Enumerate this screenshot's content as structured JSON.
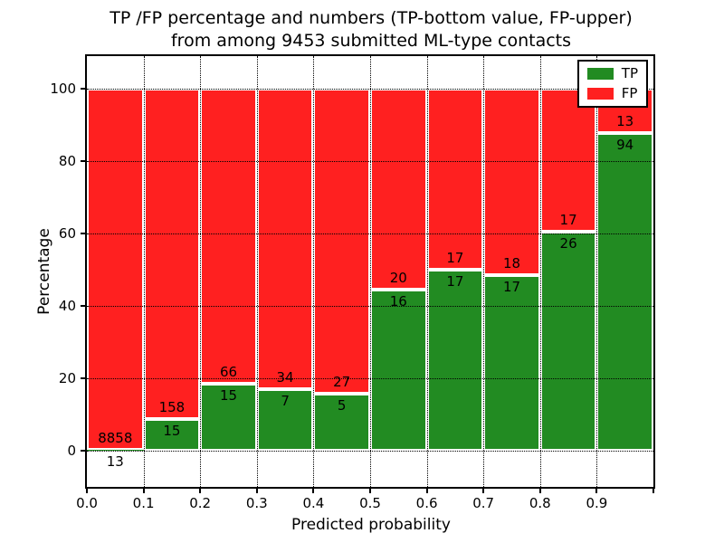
{
  "header": {
    "title_line1": "TP /FP percentage and numbers (TP-bottom value, FP-upper)",
    "title_line2": "from among 9453 submitted ML-type contacts"
  },
  "axes": {
    "xlabel": "Predicted probability",
    "ylabel": "Percentage",
    "xtick_labels": [
      "0.0",
      "0.1",
      "0.2",
      "0.3",
      "0.4",
      "0.5",
      "0.6",
      "0.7",
      "0.8",
      "0.9"
    ],
    "ytick_values": [
      0,
      20,
      40,
      60,
      80,
      100
    ]
  },
  "legend": {
    "position": "upper right",
    "entries": [
      {
        "label": "TP",
        "color": "#228b22"
      },
      {
        "label": "FP",
        "color": "#ff2020"
      }
    ]
  },
  "chart_data": {
    "type": "bar",
    "stacked": true,
    "normalized": "each bin stacks to 100 percent",
    "title": "TP /FP percentage and numbers (TP-bottom value, FP-upper) from among 9453 submitted ML-type contacts",
    "xlabel": "Predicted probability",
    "ylabel": "Percentage",
    "xlim": [
      0.0,
      1.0
    ],
    "ylim": [
      -10,
      109
    ],
    "grid": "dotted",
    "legend_position": "upper right",
    "bin_edges": [
      0.0,
      0.1,
      0.2,
      0.3,
      0.4,
      0.5,
      0.6,
      0.7,
      0.8,
      0.9,
      1.0
    ],
    "categories": [
      "0.0-0.1",
      "0.1-0.2",
      "0.2-0.3",
      "0.3-0.4",
      "0.4-0.5",
      "0.5-0.6",
      "0.6-0.7",
      "0.7-0.8",
      "0.8-0.9",
      "0.9-1.0"
    ],
    "series": [
      {
        "name": "TP",
        "color": "#228b22",
        "counts": [
          13,
          15,
          15,
          7,
          5,
          16,
          17,
          17,
          26,
          94
        ],
        "percent": [
          0.15,
          8.67,
          18.52,
          17.07,
          15.63,
          44.44,
          50.0,
          48.57,
          60.47,
          87.85
        ]
      },
      {
        "name": "FP",
        "color": "#ff2020",
        "counts": [
          8858,
          158,
          66,
          34,
          27,
          20,
          17,
          18,
          17,
          13
        ],
        "percent": [
          99.85,
          91.33,
          81.48,
          82.93,
          84.38,
          55.56,
          50.0,
          51.43,
          39.53,
          12.15
        ]
      }
    ],
    "total_submitted": 9453
  }
}
